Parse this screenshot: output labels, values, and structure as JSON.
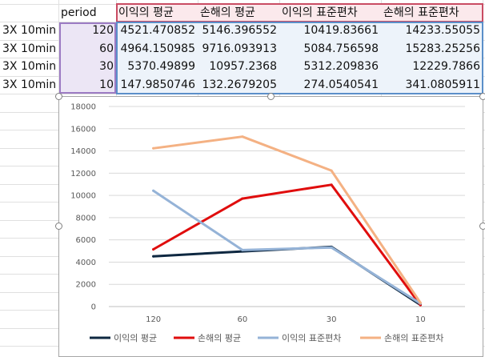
{
  "table": {
    "header_label": "period",
    "columns": [
      "이익의 평균",
      "손해의 평균",
      "이익의 표준편차",
      "손해의 표준편차"
    ],
    "rows": [
      {
        "name": "3X 10min",
        "period": "120",
        "values": [
          "4521.470852",
          "5146.396552",
          "10419.83661",
          "14233.55055"
        ]
      },
      {
        "name": "3X 10min",
        "period": "60",
        "values": [
          "4964.150985",
          "9716.093913",
          "5084.756598",
          "15283.25256"
        ]
      },
      {
        "name": "3X 10min",
        "period": "30",
        "values": [
          "5370.49899",
          "10957.2368",
          "5312.209836",
          "12229.7866"
        ]
      },
      {
        "name": "3X 10min",
        "period": "10",
        "values": [
          "147.9850746",
          "132.2679205",
          "274.0540541",
          "341.0805911"
        ]
      }
    ]
  },
  "chart_data": {
    "type": "line",
    "categories": [
      "120",
      "60",
      "30",
      "10"
    ],
    "ylim": [
      0,
      18000
    ],
    "yticks": [
      "0",
      "2000",
      "4000",
      "6000",
      "8000",
      "10000",
      "12000",
      "14000",
      "16000",
      "18000"
    ],
    "series": [
      {
        "name": "이익의 평균",
        "color": "#0e2841",
        "values": [
          4521.470852,
          4964.150985,
          5370.49899,
          147.9850746
        ]
      },
      {
        "name": "손해의 평균",
        "color": "#e00d0d",
        "values": [
          5146.396552,
          9716.093913,
          10957.2368,
          132.2679205
        ]
      },
      {
        "name": "이익의 표준편차",
        "color": "#95b3d7",
        "values": [
          10419.83661,
          5084.756598,
          5312.209836,
          274.0540541
        ]
      },
      {
        "name": "손해의 표준편차",
        "color": "#f4b183",
        "values": [
          14233.55055,
          15283.25256,
          12229.7866,
          341.0805911
        ]
      }
    ],
    "legend_position": "bottom",
    "grid": true
  }
}
